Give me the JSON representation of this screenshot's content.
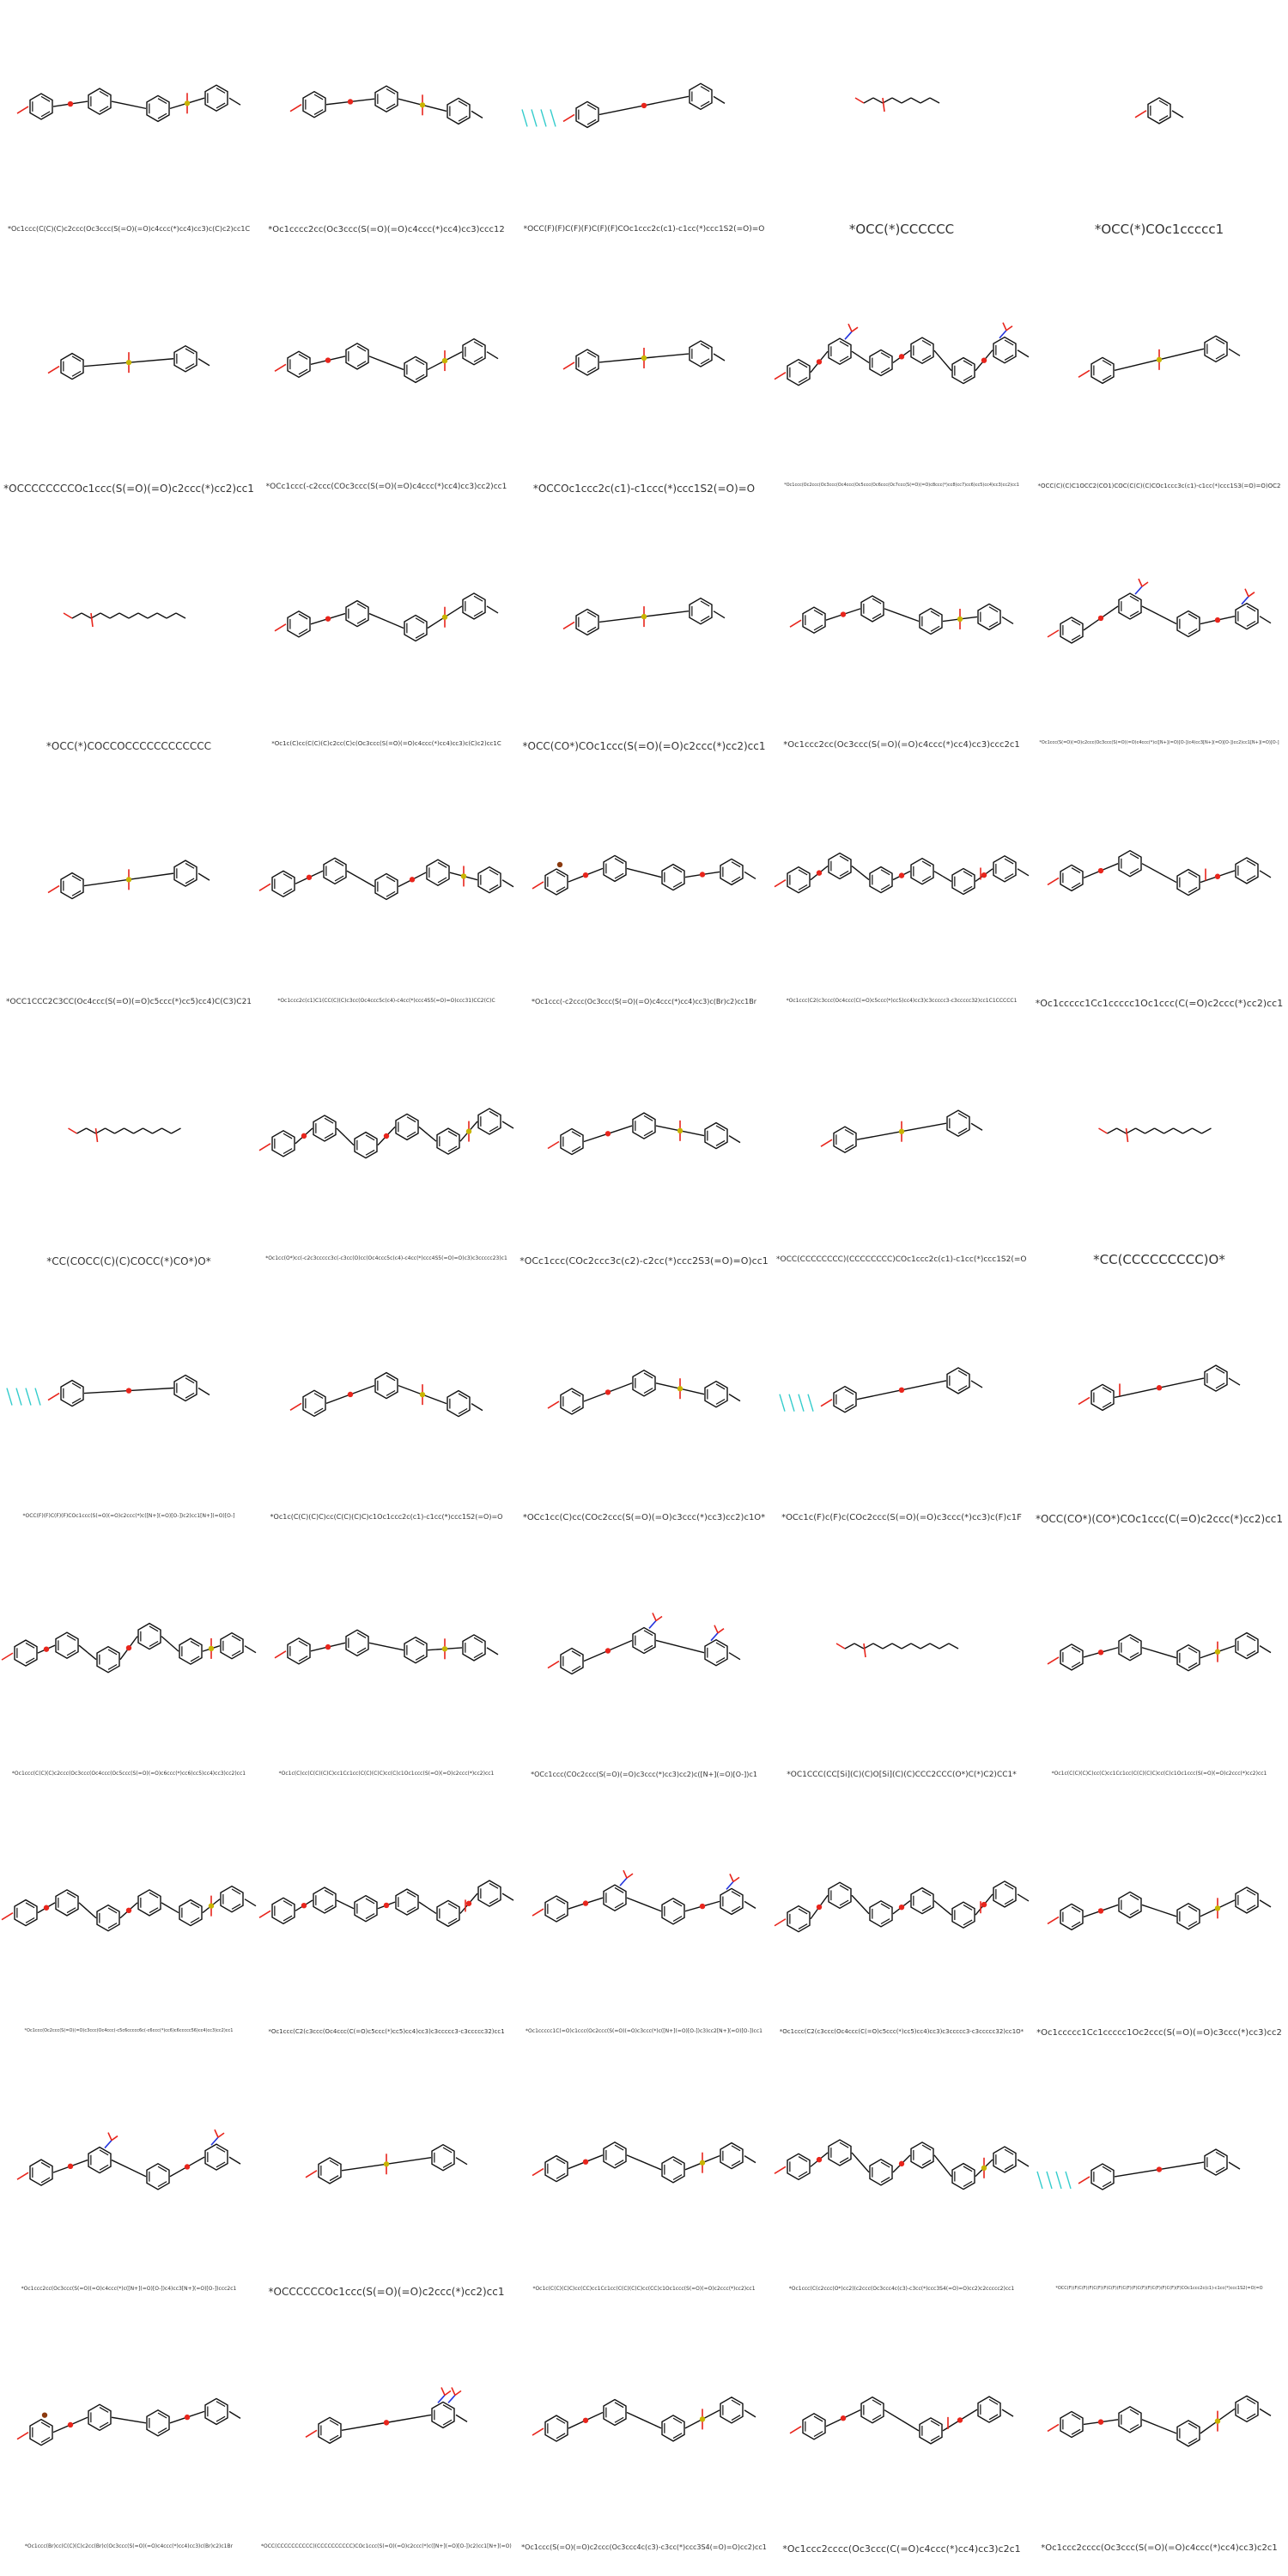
{
  "grid": {
    "columns": 5,
    "cells": [
      {
        "smiles": "*Oc1ccc(C(C)(C)c2ccc(Oc3ccc(S(=O)(=O)c4ccc(*)cc4)cc3)c(C)c2)cc1C",
        "motif": "sulfone"
      },
      {
        "smiles": "*Oc1cccc2cc(Oc3ccc(S(=O)(=O)c4ccc(*)cc4)cc3)ccc12",
        "motif": "sulfone"
      },
      {
        "smiles": "*OCC(F)(F)C(F)(F)C(F)(F)COc1ccc2c(c1)-c1cc(*)ccc1S2(=O)=O",
        "motif": "fluoro"
      },
      {
        "smiles": "*OCC(*)CCCCCC",
        "motif": "chain"
      },
      {
        "smiles": "*OCC(*)COc1ccccc1",
        "motif": "aryl"
      },
      {
        "smiles": "*OCCCCCCCCOc1ccc(S(=O)(=O)c2ccc(*)cc2)cc1",
        "motif": "sulfone"
      },
      {
        "smiles": "*OCc1ccc(-c2ccc(COc3ccc(S(=O)(=O)c4ccc(*)cc4)cc3)cc2)cc1",
        "motif": "sulfone"
      },
      {
        "smiles": "*OCCOc1ccc2c(c1)-c1ccc(*)ccc1S2(=O)=O",
        "motif": "sulfone"
      },
      {
        "smiles": "*Oc1ccc(Oc2ccc(Oc3ccc(Oc4ccc(Oc5ccc(Oc6ccc(Oc7ccc(S(=O)(=O)c8ccc(*)cc8)cc7)cc6)cc5)cc4)cc3)cc2)cc1",
        "motif": "nitro"
      },
      {
        "smiles": "*OCC(C)(C)C1OCC2(CO1)COC(C(C)(C)COc1ccc3c(c1)-c1cc(*)ccc1S3(=O)=O)OC2",
        "motif": "sulfone"
      },
      {
        "smiles": "*OCC(*)COCCOCCCCCCCCCCCC",
        "motif": "chain"
      },
      {
        "smiles": "*Oc1c(C)cc(C(C)(C)c2cc(C)c(Oc3ccc(S(=O)(=O)c4ccc(*)cc4)cc3)c(C)c2)cc1C",
        "motif": "sulfone"
      },
      {
        "smiles": "*OCC(CO*)COc1ccc(S(=O)(=O)c2ccc(*)cc2)cc1",
        "motif": "sulfone"
      },
      {
        "smiles": "*Oc1ccc2cc(Oc3ccc(S(=O)(=O)c4ccc(*)cc4)cc3)ccc2c1",
        "motif": "sulfone"
      },
      {
        "smiles": "*Oc1ccc(S(=O)(=O)c2ccc(Oc3ccc(S(=O)(=O)c4ccc(*)c([N+](=O)[O-])c4)cc3[N+](=O)[O-])cc2)cc1[N+](=O)[O-]",
        "motif": "nitro"
      },
      {
        "smiles": "*OCC1CCC2C3CC(Oc4ccc(S(=O)(=O)c5ccc(*)cc5)cc4)C(C3)C21",
        "motif": "sulfone"
      },
      {
        "smiles": "*Oc1ccc2c(c1)C1(CC(C)(C)c3cc(Oc4ccc5c(c4)-c4cc(*)ccc4S5(=O)=O)ccc31)CC2(C)C",
        "motif": "sulfone"
      },
      {
        "smiles": "*Oc1ccc(-c2ccc(Oc3ccc(S(=O)(=O)c4ccc(*)cc4)cc3)c(Br)c2)cc1Br",
        "motif": "bromo"
      },
      {
        "smiles": "*Oc1ccc(C2(c3ccc(Oc4ccc(C(=O)c5ccc(*)cc5)cc4)cc3)c3ccccc3-c3ccccc32)cc1C1CCCCC1",
        "motif": "ketone"
      },
      {
        "smiles": "*Oc1ccccc1Cc1ccccc1Oc1ccc(C(=O)c2ccc(*)cc2)cc1",
        "motif": "ketone"
      },
      {
        "smiles": "*CC(COCC(C)(C)COCC(*)CO*)O*",
        "motif": "chain"
      },
      {
        "smiles": "*Oc1cc(O*)cc(-c2c3ccccc3c(-c3cc(O)cc(Oc4ccc5c(c4)-c4cc(*)ccc4S5(=O)=O)c3)c3ccccc23)c1",
        "motif": "sulfone"
      },
      {
        "smiles": "*OCc1ccc(COc2ccc3c(c2)-c2cc(*)ccc2S3(=O)=O)cc1",
        "motif": "sulfone"
      },
      {
        "smiles": "*OCC(CCCCCCCC)(CCCCCCCC)COc1ccc2c(c1)-c1cc(*)ccc1S2(=O)=O",
        "motif": "sulfone"
      },
      {
        "smiles": "*CC(CCCCCCCCC)O*",
        "motif": "chain"
      },
      {
        "smiles": "*OCC(F)(F)C(F)(F)COc1ccc(S(=O)(=O)c2ccc(*)c([N+](=O)[O-])c2)cc1[N+](=O)[O-]",
        "motif": "fluoro"
      },
      {
        "smiles": "*Oc1c(C(C)(C)C)cc(C(C)(C)C)c1Oc1ccc2c(c1)-c1cc(*)ccc1S2(=O)=O",
        "motif": "sulfone"
      },
      {
        "smiles": "*OCc1cc(C)cc(COc2ccc(S(=O)(=O)c3ccc(*)cc3)cc2)c1O*",
        "motif": "sulfone"
      },
      {
        "smiles": "*OCc1c(F)c(F)c(COc2ccc(S(=O)(=O)c3ccc(*)cc3)c(F)c1F",
        "motif": "fluoro"
      },
      {
        "smiles": "*OCC(CO*)(CO*)COc1ccc(C(=O)c2ccc(*)cc2)cc1",
        "motif": "ketone"
      },
      {
        "smiles": "*Oc1ccc(C(C)(C)c2ccc(Oc3ccc(Oc4ccc(Oc5ccc(S(=O)(=O)c6ccc(*)cc6)cc5)cc4)cc3)cc2)cc1",
        "motif": "sulfone"
      },
      {
        "smiles": "*Oc1c(C)cc(C(C)(C)C)cc1Cc1cc(C(C)(C)C)cc(C)c1Oc1ccc(S(=O)(=O)c2ccc(*)cc2)cc1",
        "motif": "sulfone"
      },
      {
        "smiles": "*OCc1ccc(COc2ccc(S(=O)(=O)c3ccc(*)cc3)cc2)c([N+](=O)[O-])c1",
        "motif": "nitro"
      },
      {
        "smiles": "*OC1CCC(CC[Si](C)(C)O[Si](C)(C)CCC2CCC(O*)C(*)C2)CC1*",
        "motif": "silicon"
      },
      {
        "smiles": "*Oc1c(C(C)(C)C)cc(C)cc1Cc1cc(C(C)(C)C)cc(C)c1Oc1ccc(S(=O)(=O)c2ccc(*)cc2)cc1",
        "motif": "sulfone"
      },
      {
        "smiles": "*Oc1ccc(Oc2ccc(S(=O)(=O)c3ccc(Oc4ccc(-c5c6ccccc6c(-c6ccc(*)cc6)c6ccccc56)cc4)cc3)cc2)cc1",
        "motif": "sulfone"
      },
      {
        "smiles": "*Oc1ccc(C2(c3ccc(Oc4ccc(C(=O)c5ccc(*)cc5)cc4)cc3)c3ccccc3-c3ccccc32)cc1",
        "motif": "ketone"
      },
      {
        "smiles": "*Oc1ccccc1C(=O)c1ccc(Oc2ccc(S(=O)(=O)c3ccc(*)c([N+](=O)[O-])c3)cc2[N+](=O)[O-])cc1",
        "motif": "nitro"
      },
      {
        "smiles": "*Oc1ccc(C2(c3ccc(Oc4ccc(C(=O)c5ccc(*)cc5)cc4)cc3)c3ccccc3-c3ccccc32)cc1O*",
        "motif": "ketone"
      },
      {
        "smiles": "*Oc1ccccc1Cc1ccccc1Oc2ccc(S(=O)(=O)c3ccc(*)cc3)cc2",
        "motif": "sulfone"
      },
      {
        "smiles": "*Oc1ccc2cc(Oc3ccc(S(=O)(=O)c4ccc(*)c([N+](=O)[O-])c4)cc3[N+](=O)[O-])ccc2c1",
        "motif": "nitro"
      },
      {
        "smiles": "*OCCCCCCOc1ccc(S(=O)(=O)c2ccc(*)cc2)cc1",
        "motif": "sulfone"
      },
      {
        "smiles": "*Oc1c(C(C)(C)C)cc(CC)cc1Cc1cc(C(C)(C)C)cc(CC)c1Oc1ccc(S(=O)(=O)c2ccc(*)cc2)cc1",
        "motif": "sulfone"
      },
      {
        "smiles": "*Oc1ccc(C(c2ccc(O*)cc2)(c2ccc(Oc3ccc4c(c3)-c3cc(*)ccc3S4(=O)=O)cc2)c2ccccc2)cc1",
        "motif": "sulfone"
      },
      {
        "smiles": "*OCC(F)(F)C(F)(F)C(F)(F)C(F)(F)C(F)(F)C(F)(F)C(F)(F)C(F)(F)COc1ccc2c(c1)-c1cc(*)ccc1S2(=O)=O",
        "motif": "fluoro"
      },
      {
        "smiles": "*Oc1ccc(Br)cc(C(C)(C)c2cc(Br)c(Oc3ccc(S(=O)(=O)c4ccc(*)cc4)cc3)c(Br)c2)c1Br",
        "motif": "bromo"
      },
      {
        "smiles": "*OCC(CCCCCCCCCC)(CCCCCCCCCC)COc1ccc(S(=O)(=O)c2ccc(*)c([N+](=O)[O-])c2)cc1[N+](=O)[O-]",
        "motif": "nitro"
      },
      {
        "smiles": "*Oc1ccc(S(=O)(=O)c2ccc(Oc3ccc4c(c3)-c3cc(*)ccc3S4(=O)=O)cc2)cc1",
        "motif": "sulfone"
      },
      {
        "smiles": "*Oc1ccc2cccc(Oc3ccc(C(=O)c4ccc(*)cc4)cc3)c2c1",
        "motif": "ketone"
      },
      {
        "smiles": "*Oc1ccc2cccc(Oc3ccc(S(=O)(=O)c4ccc(*)cc4)cc3)c2c1",
        "motif": "sulfone"
      }
    ]
  },
  "colors": {
    "bond": "#111111",
    "oxygen": "#e8251c",
    "sulfur": "#c8b400",
    "nitrogen": "#2233dd",
    "fluorine": "#33cccc",
    "bromine": "#8b3a0f",
    "silicon": "#d6a000",
    "background": "#ffffff"
  }
}
